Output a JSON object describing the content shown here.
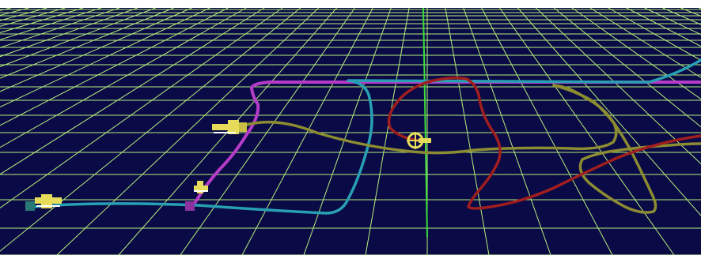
{
  "scene": {
    "background_color": "#0a0a46",
    "sky_color": "#ffffff",
    "grid_color": "#b6f07c",
    "axis_color": "#3cdc3c",
    "trajectories": [
      {
        "name": "magenta-path",
        "color": "#b43cc8"
      },
      {
        "name": "cyan-path",
        "color": "#28a0b4"
      },
      {
        "name": "olive-path",
        "color": "#8c8c32"
      },
      {
        "name": "red-path",
        "color": "#a01e1e"
      }
    ],
    "objects": [
      {
        "name": "vehicle-marker-upper",
        "icon": "vehicle-icon",
        "color": "#e6dc5a"
      },
      {
        "name": "vehicle-marker-middle",
        "icon": "vehicle-icon",
        "color": "#e6dc5a"
      },
      {
        "name": "vehicle-marker-left",
        "icon": "vehicle-icon",
        "color": "#e6dc5a"
      },
      {
        "name": "center-target-marker",
        "icon": "crosshair-icon",
        "color": "#e6dc5a"
      },
      {
        "name": "magenta-waypoint",
        "icon": "square-marker-icon",
        "color": "#8c32a0"
      },
      {
        "name": "teal-waypoint",
        "icon": "square-marker-icon",
        "color": "#287878"
      }
    ]
  }
}
